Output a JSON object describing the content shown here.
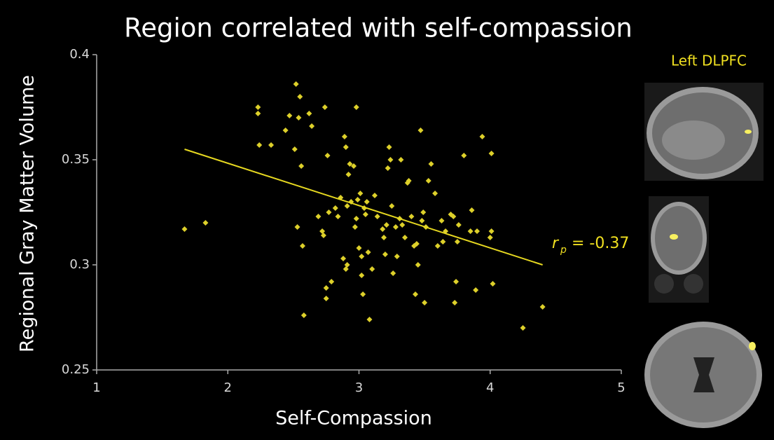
{
  "chart_data": {
    "type": "scatter",
    "title": "Region correlated with self-compassion",
    "xlabel": "Self-Compassion",
    "ylabel": "Regional Gray Matter Volume",
    "xlim": [
      1,
      5
    ],
    "xticks": [
      1,
      2,
      3,
      4,
      5
    ],
    "ylim": [
      0.25,
      0.4
    ],
    "yticks": [
      0.25,
      0.3,
      0.35,
      0.4
    ],
    "grid": false,
    "series": [
      {
        "color": "#ddd02a",
        "x": [
          1.67,
          1.83,
          2.23,
          2.23,
          2.24,
          2.33,
          2.44,
          2.47,
          2.52,
          2.51,
          2.54,
          2.55,
          2.56,
          2.57,
          2.53,
          2.58,
          2.62,
          2.64,
          2.69,
          2.72,
          2.73,
          2.74,
          2.75,
          2.75,
          2.76,
          2.77,
          2.79,
          2.82,
          2.84,
          2.86,
          2.88,
          2.89,
          2.9,
          2.9,
          2.91,
          2.91,
          2.92,
          2.93,
          2.94,
          2.96,
          2.97,
          2.98,
          2.98,
          2.99,
          3.0,
          3.01,
          3.02,
          3.02,
          3.03,
          3.04,
          3.05,
          3.06,
          3.07,
          3.08,
          3.1,
          3.12,
          3.14,
          3.18,
          3.19,
          3.2,
          3.21,
          3.22,
          3.23,
          3.24,
          3.25,
          3.26,
          3.28,
          3.29,
          3.31,
          3.32,
          3.33,
          3.35,
          3.37,
          3.38,
          3.4,
          3.42,
          3.43,
          3.44,
          3.45,
          3.47,
          3.48,
          3.49,
          3.5,
          3.51,
          3.53,
          3.55,
          3.58,
          3.6,
          3.63,
          3.64,
          3.66,
          3.7,
          3.72,
          3.73,
          3.74,
          3.75,
          3.76,
          3.8,
          3.85,
          3.86,
          3.89,
          3.9,
          3.94,
          4.0,
          4.01,
          4.01,
          4.02,
          4.25,
          4.4
        ],
        "y": [
          0.317,
          0.32,
          0.375,
          0.372,
          0.357,
          0.357,
          0.364,
          0.371,
          0.386,
          0.355,
          0.37,
          0.38,
          0.347,
          0.309,
          0.318,
          0.276,
          0.372,
          0.366,
          0.323,
          0.316,
          0.314,
          0.375,
          0.284,
          0.289,
          0.352,
          0.325,
          0.292,
          0.327,
          0.323,
          0.332,
          0.303,
          0.361,
          0.356,
          0.298,
          0.3,
          0.328,
          0.343,
          0.348,
          0.33,
          0.347,
          0.318,
          0.375,
          0.322,
          0.331,
          0.308,
          0.334,
          0.295,
          0.304,
          0.286,
          0.327,
          0.324,
          0.33,
          0.306,
          0.274,
          0.298,
          0.333,
          0.323,
          0.317,
          0.313,
          0.305,
          0.319,
          0.346,
          0.356,
          0.35,
          0.328,
          0.296,
          0.318,
          0.304,
          0.322,
          0.35,
          0.319,
          0.313,
          0.339,
          0.34,
          0.323,
          0.309,
          0.286,
          0.31,
          0.3,
          0.364,
          0.321,
          0.325,
          0.282,
          0.318,
          0.34,
          0.348,
          0.334,
          0.309,
          0.321,
          0.311,
          0.316,
          0.324,
          0.323,
          0.282,
          0.292,
          0.311,
          0.319,
          0.352,
          0.316,
          0.326,
          0.288,
          0.316,
          0.361,
          0.313,
          0.316,
          0.353,
          0.291,
          0.27,
          0.28
        ]
      }
    ],
    "fit": {
      "color": "#e6d820",
      "x": [
        1.67,
        4.4
      ],
      "y": [
        0.355,
        0.3
      ]
    },
    "annotation": {
      "symbol": "r",
      "subscript": "p",
      "text": "= -0.37"
    },
    "region_label": "Left DLPFC"
  }
}
